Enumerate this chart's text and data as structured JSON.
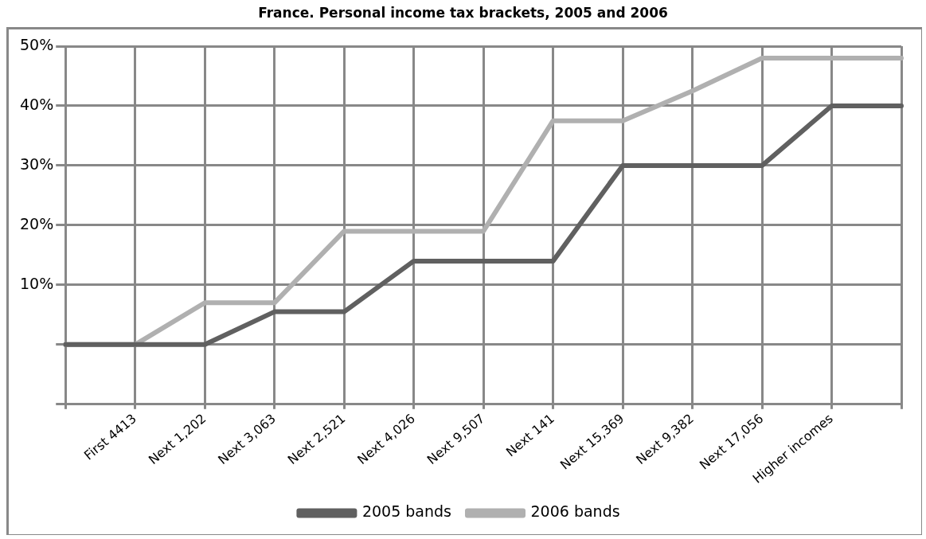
{
  "chart_data": {
    "type": "line",
    "title": "France. Personal income tax brackets, 2005 and 2006",
    "categories": [
      null,
      "First 4413",
      "Next 1,202",
      "Next 3,063",
      "Next 2,521",
      "Next 4,026",
      "Next 9,507",
      "Next 141",
      "Next 15,369",
      "Next 9,382",
      "Next 17,056",
      "Higher incomes",
      null
    ],
    "series": [
      {
        "name": "2005 bands",
        "color": "#606060",
        "values": [
          0,
          0,
          0,
          5.5,
          5.5,
          14,
          14,
          14,
          30,
          30,
          30,
          40,
          40
        ]
      },
      {
        "name": "2006 bands",
        "color": "#b0b0b0",
        "values": [
          0,
          0,
          7,
          7,
          19,
          19,
          19,
          37.5,
          37.5,
          42.5,
          48,
          48,
          48
        ]
      }
    ],
    "ylim": [
      -10,
      50
    ],
    "yticks": [
      {
        "value": -10,
        "label": null
      },
      {
        "value": 0,
        "label": null
      },
      {
        "value": 10,
        "label": "10%"
      },
      {
        "value": 20,
        "label": "20%"
      },
      {
        "value": 30,
        "label": "30%"
      },
      {
        "value": 40,
        "label": "40%"
      },
      {
        "value": 50,
        "label": "50%"
      }
    ],
    "grid": true,
    "legend": "bottom",
    "marker": "none",
    "line_style": "solid"
  }
}
